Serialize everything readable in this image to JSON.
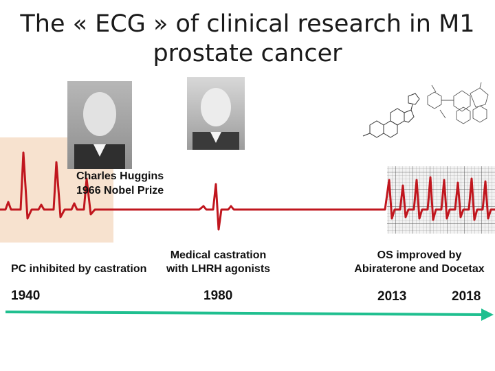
{
  "title_line1": "The « ECG » of clinical research in M1",
  "title_line2": "prostate cancer",
  "huggins_name": "Charles Huggins",
  "huggins_prize": "1966 Nobel Prize",
  "event_1940": "PC inhibited by castration",
  "event_1980_line1": "Medical castration",
  "event_1980_line2": "with LHRH agonists",
  "event_2013_line1": "OS improved by",
  "event_2013_line2": "Abiraterone and Docetax",
  "years": [
    "1940",
    "1980",
    "2013",
    "2018"
  ],
  "colors": {
    "ecg": "#c0161e",
    "timeline": "#1fbf8f",
    "panel": "#f7e2cf"
  }
}
